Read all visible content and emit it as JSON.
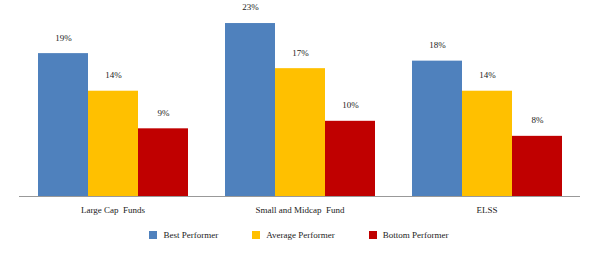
{
  "chart_data": {
    "type": "bar",
    "categories": [
      "Large Cap  Funds",
      "Small and Midcap  Fund",
      "ELSS"
    ],
    "series": [
      {
        "name": "Best Performer",
        "color": "#4f81bd",
        "values": [
          19,
          23,
          18
        ],
        "value_labels": [
          "19%",
          "23%",
          "18%"
        ]
      },
      {
        "name": "Average Performer",
        "color": "#ffc000",
        "values": [
          14,
          17,
          14
        ],
        "value_labels": [
          "14%",
          "17%",
          "14%"
        ]
      },
      {
        "name": "Bottom Performer",
        "color": "#c00000",
        "values": [
          9,
          10,
          8
        ],
        "value_labels": [
          "9%",
          "10%",
          "8%"
        ]
      }
    ],
    "ylim": [
      0,
      25
    ],
    "data_labels": true,
    "tick_labels": "x",
    "legend": "bottom"
  }
}
